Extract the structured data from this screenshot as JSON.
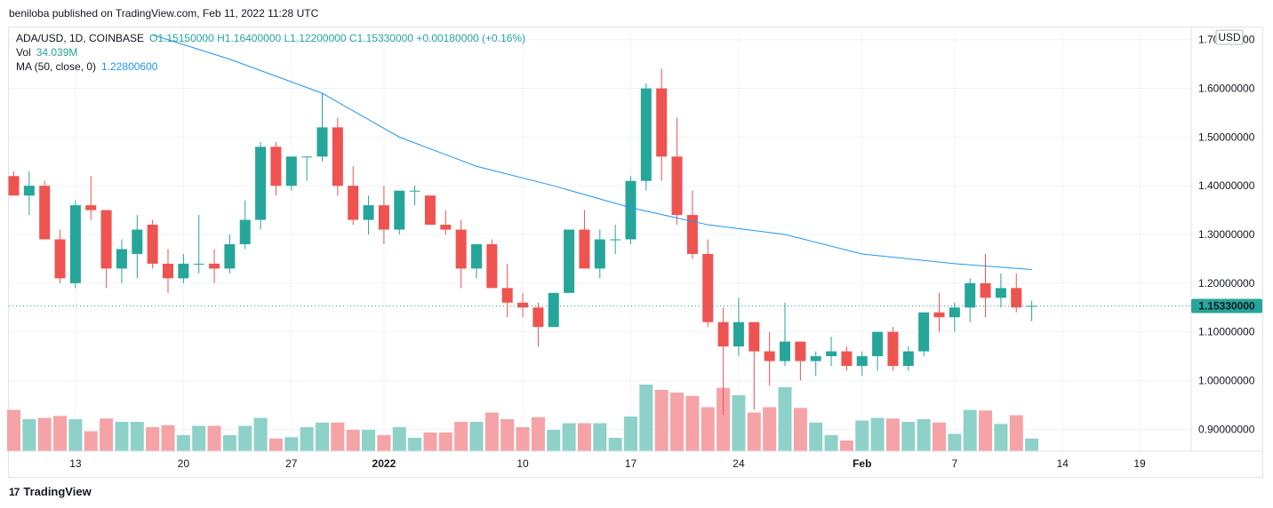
{
  "publisher": "beniloba published on TradingView.com, Feb 11, 2022 11:28 UTC",
  "legend": {
    "symbol": "ADA/USD, 1D, COINBASE",
    "ohlc": "O1.15150000 H1.16400000 L1.12200000 C1.15330000 +0.00180000 (+0.16%)",
    "vol_label": "Vol",
    "vol_value": "34.039M",
    "ma_label": "MA (50, close, 0)",
    "ma_value": "1.22800600"
  },
  "currency_badge": "USD",
  "last_price_label": "1.15330000",
  "footer_brand": "TradingView",
  "colors": {
    "up": "#26a69a",
    "down": "#ef5350",
    "up_vol": "#8ed1c9",
    "down_vol": "#f5a3a6",
    "ma": "#2196f3",
    "grid": "#f0f3fa"
  },
  "chart_data": {
    "type": "candlestick",
    "symbol": "ADA/USD",
    "interval": "1D",
    "exchange": "COINBASE",
    "price_axis": {
      "ticks": [
        "0.90000000",
        "1.00000000",
        "1.10000000",
        "1.20000000",
        "1.30000000",
        "1.40000000",
        "1.50000000",
        "1.60000000",
        "1.70000000"
      ],
      "range": [
        0.855,
        1.725
      ]
    },
    "time_axis": {
      "ticks": [
        "13",
        "20",
        "27",
        "2022",
        "10",
        "17",
        "24",
        "Feb",
        "7",
        "14",
        "19"
      ],
      "tick_day_index": [
        4,
        11,
        18,
        24,
        33,
        40,
        47,
        55,
        61,
        68,
        73
      ]
    },
    "last_price": 1.1533,
    "candles": [
      {
        "o": 1.42,
        "h": 1.43,
        "l": 1.38,
        "c": 1.38
      },
      {
        "o": 1.38,
        "h": 1.43,
        "l": 1.34,
        "c": 1.4
      },
      {
        "o": 1.4,
        "h": 1.41,
        "l": 1.29,
        "c": 1.29
      },
      {
        "o": 1.29,
        "h": 1.31,
        "l": 1.2,
        "c": 1.21
      },
      {
        "o": 1.2,
        "h": 1.37,
        "l": 1.19,
        "c": 1.36
      },
      {
        "o": 1.36,
        "h": 1.42,
        "l": 1.33,
        "c": 1.35
      },
      {
        "o": 1.35,
        "h": 1.35,
        "l": 1.19,
        "c": 1.23
      },
      {
        "o": 1.23,
        "h": 1.29,
        "l": 1.2,
        "c": 1.27
      },
      {
        "o": 1.26,
        "h": 1.34,
        "l": 1.21,
        "c": 1.31
      },
      {
        "o": 1.32,
        "h": 1.33,
        "l": 1.23,
        "c": 1.24
      },
      {
        "o": 1.24,
        "h": 1.27,
        "l": 1.18,
        "c": 1.21
      },
      {
        "o": 1.21,
        "h": 1.26,
        "l": 1.2,
        "c": 1.24
      },
      {
        "o": 1.24,
        "h": 1.34,
        "l": 1.22,
        "c": 1.24
      },
      {
        "o": 1.24,
        "h": 1.27,
        "l": 1.2,
        "c": 1.23
      },
      {
        "o": 1.23,
        "h": 1.3,
        "l": 1.22,
        "c": 1.28
      },
      {
        "o": 1.28,
        "h": 1.37,
        "l": 1.27,
        "c": 1.33
      },
      {
        "o": 1.33,
        "h": 1.49,
        "l": 1.31,
        "c": 1.48
      },
      {
        "o": 1.48,
        "h": 1.49,
        "l": 1.38,
        "c": 1.4
      },
      {
        "o": 1.4,
        "h": 1.46,
        "l": 1.39,
        "c": 1.46
      },
      {
        "o": 1.46,
        "h": 1.46,
        "l": 1.41,
        "c": 1.46
      },
      {
        "o": 1.46,
        "h": 1.59,
        "l": 1.45,
        "c": 1.52
      },
      {
        "o": 1.52,
        "h": 1.54,
        "l": 1.38,
        "c": 1.4
      },
      {
        "o": 1.4,
        "h": 1.44,
        "l": 1.32,
        "c": 1.33
      },
      {
        "o": 1.33,
        "h": 1.38,
        "l": 1.3,
        "c": 1.36
      },
      {
        "o": 1.36,
        "h": 1.4,
        "l": 1.28,
        "c": 1.31
      },
      {
        "o": 1.31,
        "h": 1.39,
        "l": 1.3,
        "c": 1.39
      },
      {
        "o": 1.39,
        "h": 1.4,
        "l": 1.36,
        "c": 1.39
      },
      {
        "o": 1.38,
        "h": 1.38,
        "l": 1.32,
        "c": 1.32
      },
      {
        "o": 1.32,
        "h": 1.35,
        "l": 1.3,
        "c": 1.31
      },
      {
        "o": 1.31,
        "h": 1.33,
        "l": 1.19,
        "c": 1.23
      },
      {
        "o": 1.23,
        "h": 1.28,
        "l": 1.21,
        "c": 1.28
      },
      {
        "o": 1.28,
        "h": 1.29,
        "l": 1.19,
        "c": 1.19
      },
      {
        "o": 1.19,
        "h": 1.24,
        "l": 1.13,
        "c": 1.16
      },
      {
        "o": 1.16,
        "h": 1.18,
        "l": 1.13,
        "c": 1.15
      },
      {
        "o": 1.15,
        "h": 1.16,
        "l": 1.07,
        "c": 1.11
      },
      {
        "o": 1.11,
        "h": 1.18,
        "l": 1.11,
        "c": 1.18
      },
      {
        "o": 1.18,
        "h": 1.31,
        "l": 1.18,
        "c": 1.31
      },
      {
        "o": 1.31,
        "h": 1.35,
        "l": 1.23,
        "c": 1.23
      },
      {
        "o": 1.23,
        "h": 1.31,
        "l": 1.21,
        "c": 1.29
      },
      {
        "o": 1.29,
        "h": 1.32,
        "l": 1.26,
        "c": 1.29
      },
      {
        "o": 1.29,
        "h": 1.42,
        "l": 1.28,
        "c": 1.41
      },
      {
        "o": 1.41,
        "h": 1.61,
        "l": 1.39,
        "c": 1.6
      },
      {
        "o": 1.6,
        "h": 1.64,
        "l": 1.41,
        "c": 1.46
      },
      {
        "o": 1.46,
        "h": 1.54,
        "l": 1.32,
        "c": 1.34
      },
      {
        "o": 1.34,
        "h": 1.39,
        "l": 1.25,
        "c": 1.26
      },
      {
        "o": 1.26,
        "h": 1.29,
        "l": 1.11,
        "c": 1.12
      },
      {
        "o": 1.12,
        "h": 1.15,
        "l": 0.93,
        "c": 1.07
      },
      {
        "o": 1.07,
        "h": 1.17,
        "l": 1.05,
        "c": 1.12
      },
      {
        "o": 1.12,
        "h": 1.12,
        "l": 0.94,
        "c": 1.06
      },
      {
        "o": 1.06,
        "h": 1.1,
        "l": 0.99,
        "c": 1.04
      },
      {
        "o": 1.04,
        "h": 1.16,
        "l": 1.03,
        "c": 1.08
      },
      {
        "o": 1.08,
        "h": 1.08,
        "l": 1.0,
        "c": 1.04
      },
      {
        "o": 1.04,
        "h": 1.06,
        "l": 1.01,
        "c": 1.05
      },
      {
        "o": 1.05,
        "h": 1.09,
        "l": 1.03,
        "c": 1.06
      },
      {
        "o": 1.06,
        "h": 1.07,
        "l": 1.02,
        "c": 1.03
      },
      {
        "o": 1.03,
        "h": 1.06,
        "l": 1.01,
        "c": 1.05
      },
      {
        "o": 1.05,
        "h": 1.1,
        "l": 1.02,
        "c": 1.1
      },
      {
        "o": 1.1,
        "h": 1.11,
        "l": 1.02,
        "c": 1.03
      },
      {
        "o": 1.03,
        "h": 1.07,
        "l": 1.02,
        "c": 1.06
      },
      {
        "o": 1.06,
        "h": 1.14,
        "l": 1.05,
        "c": 1.14
      },
      {
        "o": 1.14,
        "h": 1.18,
        "l": 1.1,
        "c": 1.13
      },
      {
        "o": 1.13,
        "h": 1.16,
        "l": 1.1,
        "c": 1.15
      },
      {
        "o": 1.15,
        "h": 1.21,
        "l": 1.12,
        "c": 1.2
      },
      {
        "o": 1.2,
        "h": 1.26,
        "l": 1.13,
        "c": 1.17
      },
      {
        "o": 1.17,
        "h": 1.22,
        "l": 1.15,
        "c": 1.19
      },
      {
        "o": 1.19,
        "h": 1.22,
        "l": 1.14,
        "c": 1.15
      },
      {
        "o": 1.1515,
        "h": 1.164,
        "l": 1.122,
        "c": 1.1533
      }
    ],
    "volume_relative": [
      0.62,
      0.48,
      0.5,
      0.53,
      0.48,
      0.3,
      0.49,
      0.44,
      0.44,
      0.36,
      0.39,
      0.24,
      0.38,
      0.38,
      0.24,
      0.38,
      0.5,
      0.19,
      0.21,
      0.36,
      0.43,
      0.43,
      0.32,
      0.32,
      0.24,
      0.36,
      0.2,
      0.28,
      0.28,
      0.44,
      0.44,
      0.58,
      0.48,
      0.36,
      0.51,
      0.32,
      0.42,
      0.42,
      0.42,
      0.2,
      0.52,
      1.0,
      0.92,
      0.88,
      0.83,
      0.66,
      0.95,
      0.84,
      0.58,
      0.66,
      0.96,
      0.65,
      0.43,
      0.24,
      0.16,
      0.46,
      0.5,
      0.49,
      0.44,
      0.48,
      0.43,
      0.26,
      0.62,
      0.61,
      0.41,
      0.54,
      0.19
    ],
    "ma": {
      "label": "MA (50, close, 0)",
      "points": [
        [
          9,
          1.71
        ],
        [
          14,
          1.66
        ],
        [
          20,
          1.59
        ],
        [
          25,
          1.5
        ],
        [
          30,
          1.44
        ],
        [
          35,
          1.4
        ],
        [
          40,
          1.355
        ],
        [
          45,
          1.32
        ],
        [
          50,
          1.3
        ],
        [
          55,
          1.26
        ],
        [
          61,
          1.24
        ],
        [
          66,
          1.228
        ]
      ]
    }
  }
}
